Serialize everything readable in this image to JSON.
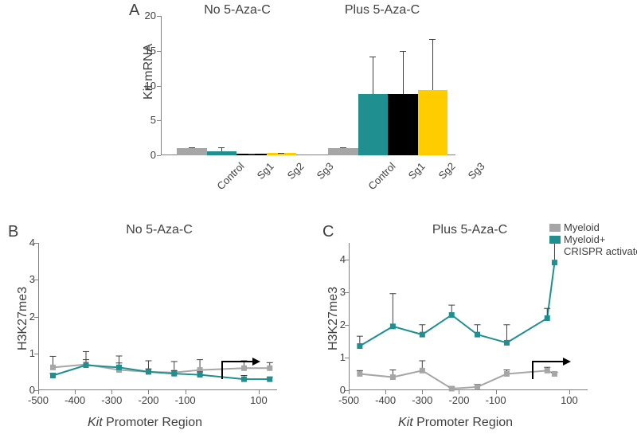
{
  "labels": {
    "panelA": "A",
    "panelB": "B",
    "panelC": "C",
    "barTitleLeft": "No 5-Aza-C",
    "barTitleRight": "Plus 5-Aza-C",
    "lineTitleB": "No 5-Aza-C",
    "lineTitleC": "Plus 5-Aza-C",
    "yBar": "Kit mRNA",
    "yLine": "H3K27me3",
    "xLinePrefixItalic": "Kit",
    "xLineSuffix": " Promoter Region",
    "legendMyeloid": "Myeloid",
    "legendMyeloidAct1": "Myeloid+",
    "legendMyeloidAct2": "CRISPR activators"
  },
  "colors": {
    "control": "#a6a6a6",
    "sg1": "#1f8f8f",
    "sg2": "#000000",
    "sg3": "#ffcc00",
    "axis": "#808080",
    "err": "#404040",
    "text": "#404040",
    "myeloid": "#a6a6a6",
    "myeloidAct": "#1f8f8f",
    "bg": "#ffffff"
  },
  "barChart": {
    "ylim": [
      0,
      20
    ],
    "yticks": [
      0,
      5,
      10,
      15,
      20
    ],
    "categories": [
      "Control",
      "Sg1",
      "Sg2",
      "Sg3"
    ],
    "groups": [
      {
        "name": "No 5-Aza-C",
        "bars": [
          {
            "cat": "Control",
            "value": 1.0,
            "err": 0.15,
            "colorKey": "control"
          },
          {
            "cat": "Sg1",
            "value": 0.6,
            "err": 0.5,
            "colorKey": "sg1"
          },
          {
            "cat": "Sg2",
            "value": 0.2,
            "err": 0.05,
            "colorKey": "sg2"
          },
          {
            "cat": "Sg3",
            "value": 0.3,
            "err": 0.1,
            "colorKey": "sg3"
          }
        ]
      },
      {
        "name": "Plus 5-Aza-C",
        "bars": [
          {
            "cat": "Control",
            "value": 1.0,
            "err": 0.1,
            "colorKey": "control"
          },
          {
            "cat": "Sg1",
            "value": 8.8,
            "err": 5.4,
            "colorKey": "sg1"
          },
          {
            "cat": "Sg2",
            "value": 8.8,
            "err": 6.2,
            "colorKey": "sg2"
          },
          {
            "cat": "Sg3",
            "value": 9.4,
            "err": 7.3,
            "colorKey": "sg3"
          }
        ]
      }
    ]
  },
  "lineB": {
    "ylim": [
      0,
      4
    ],
    "yticks": [
      0,
      1,
      2,
      3,
      4
    ],
    "xlim": [
      -500,
      150
    ],
    "xticks": [
      -500,
      -400,
      -300,
      -200,
      -100,
      100
    ],
    "tssX": 0,
    "series": [
      {
        "name": "Myeloid",
        "colorKey": "myeloid",
        "points": [
          {
            "x": -460,
            "y": 0.62,
            "err": 0.3
          },
          {
            "x": -370,
            "y": 0.7,
            "err": 0.35
          },
          {
            "x": -280,
            "y": 0.55,
            "err": 0.38
          },
          {
            "x": -200,
            "y": 0.5,
            "err": 0.3
          },
          {
            "x": -130,
            "y": 0.48,
            "err": 0.3
          },
          {
            "x": -60,
            "y": 0.55,
            "err": 0.28
          },
          {
            "x": 60,
            "y": 0.6,
            "err": 0.2
          },
          {
            "x": 130,
            "y": 0.6,
            "err": 0.15
          }
        ]
      },
      {
        "name": "Myeloid+CRISPR activators",
        "colorKey": "myeloidAct",
        "points": [
          {
            "x": -460,
            "y": 0.4,
            "err": 0.05
          },
          {
            "x": -370,
            "y": 0.68,
            "err": 0.15
          },
          {
            "x": -280,
            "y": 0.62,
            "err": 0.12
          },
          {
            "x": -200,
            "y": 0.5,
            "err": 0.08
          },
          {
            "x": -130,
            "y": 0.45,
            "err": 0.08
          },
          {
            "x": -60,
            "y": 0.42,
            "err": 0.08
          },
          {
            "x": 60,
            "y": 0.3,
            "err": 0.1
          },
          {
            "x": 130,
            "y": 0.3,
            "err": 0.05
          }
        ]
      }
    ]
  },
  "lineC": {
    "ylim": [
      0,
      4.5
    ],
    "yticks": [
      0,
      1,
      2,
      3,
      4
    ],
    "xlim": [
      -500,
      150
    ],
    "xticks": [
      -500,
      -400,
      -300,
      -200,
      -100,
      100
    ],
    "tssX": 0,
    "series": [
      {
        "name": "Myeloid",
        "colorKey": "myeloid",
        "points": [
          {
            "x": -470,
            "y": 0.5,
            "err": 0.1
          },
          {
            "x": -380,
            "y": 0.4,
            "err": 0.22
          },
          {
            "x": -300,
            "y": 0.6,
            "err": 0.3
          },
          {
            "x": -220,
            "y": 0.05,
            "err": 0.05
          },
          {
            "x": -150,
            "y": 0.1,
            "err": 0.08
          },
          {
            "x": -70,
            "y": 0.5,
            "err": 0.12
          },
          {
            "x": 40,
            "y": 0.6,
            "err": 0.1
          },
          {
            "x": 60,
            "y": 0.5,
            "err": 0.05
          }
        ]
      },
      {
        "name": "Myeloid+CRISPR activators",
        "colorKey": "myeloidAct",
        "points": [
          {
            "x": -470,
            "y": 1.35,
            "err": 0.3
          },
          {
            "x": -380,
            "y": 1.95,
            "err": 1.0
          },
          {
            "x": -300,
            "y": 1.7,
            "err": 0.3
          },
          {
            "x": -220,
            "y": 2.3,
            "err": 0.3
          },
          {
            "x": -150,
            "y": 1.7,
            "err": 0.3
          },
          {
            "x": -70,
            "y": 1.45,
            "err": 0.55
          },
          {
            "x": 40,
            "y": 2.2,
            "err": 0.3
          },
          {
            "x": 60,
            "y": 3.9,
            "err": 0.6
          }
        ]
      }
    ]
  }
}
